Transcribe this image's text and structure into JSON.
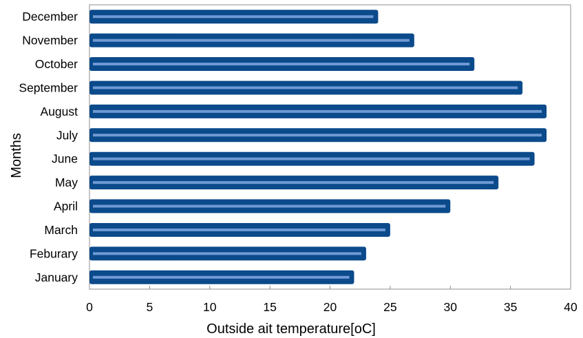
{
  "chart_data": {
    "type": "bar",
    "orientation": "horizontal",
    "categories": [
      "January",
      "Feburary",
      "March",
      "April",
      "May",
      "June",
      "July",
      "August",
      "September",
      "October",
      "November",
      "December"
    ],
    "values": [
      22,
      23,
      25,
      30,
      34,
      37,
      38,
      38,
      36,
      32,
      27,
      24
    ],
    "title": "",
    "xlabel": "Outside ait temperature[oC]",
    "ylabel": "Months",
    "xlim": [
      0,
      40
    ],
    "xticks": [
      0,
      5,
      10,
      15,
      20,
      25,
      30,
      35,
      40
    ],
    "grid": false,
    "legend": "none",
    "colors": {
      "bar": "#0b4a8b",
      "bar_highlight": "#6f9ad4",
      "frame": "#8c8c8c"
    }
  }
}
